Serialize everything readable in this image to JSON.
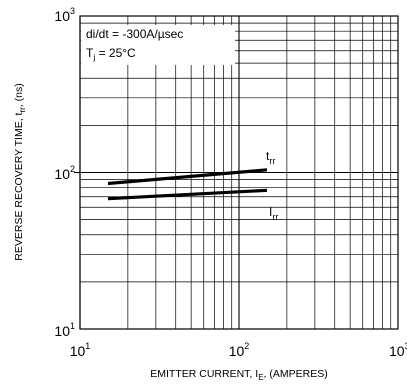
{
  "chart_data": {
    "type": "line",
    "x_scale": "log",
    "y_scale": "log",
    "xlim": [
      10,
      1000
    ],
    "ylim": [
      10,
      1000
    ],
    "grid": true,
    "xlabel": {
      "prefix": "EMITTER CURRENT, I",
      "sub": "E",
      "suffix": ", (AMPERES)"
    },
    "ylabel": {
      "prefix": "REVERSE RECOVERY TIME, t",
      "sub": "rr",
      "suffix": ", (ns)"
    },
    "x_ticks": [
      {
        "base": "10",
        "exp": "1"
      },
      {
        "base": "10",
        "exp": "2"
      },
      {
        "base": "10",
        "exp": "3"
      }
    ],
    "y_ticks": [
      {
        "base": "10",
        "exp": "3"
      },
      {
        "base": "10",
        "exp": "2"
      },
      {
        "base": "10",
        "exp": "1"
      }
    ],
    "conditions": {
      "line1": "di/dt = -300A/µsec",
      "line2_prefix": "T",
      "line2_sub": "j",
      "line2_suffix": " = 25°C"
    },
    "series": [
      {
        "name": "t",
        "name_sub": "rr",
        "x": [
          15,
          150
        ],
        "y": [
          85,
          104
        ]
      },
      {
        "name": "I",
        "name_sub": "rr",
        "x": [
          15,
          150
        ],
        "y": [
          68,
          77
        ]
      }
    ]
  }
}
